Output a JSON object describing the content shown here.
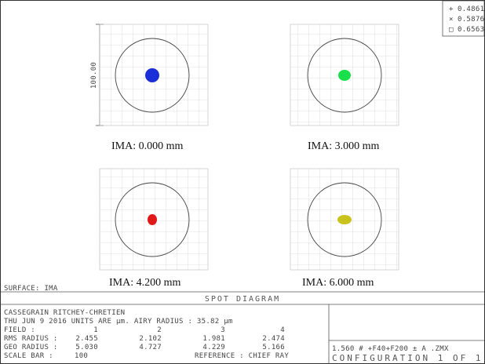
{
  "legend": [
    {
      "marker": "+",
      "value": "0.4861",
      "color": "#0000ff"
    },
    {
      "marker": "×",
      "value": "0.5876",
      "color": "#00cc33"
    },
    {
      "marker": "□",
      "value": "0.6563",
      "color": "#ff0000"
    }
  ],
  "scale_label": "100.00",
  "panels": [
    {
      "label": "IMA:  0.000 mm",
      "spot_color": "#1a2fd8",
      "spot_rx": 9,
      "spot_ry": 9
    },
    {
      "label": "IMA: 3.000 mm",
      "spot_color": "#19e04a",
      "spot_rx": 8,
      "spot_ry": 7
    },
    {
      "label": "IMA: 4.200   mm",
      "spot_color": "#e01818",
      "spot_rx": 6,
      "spot_ry": 7
    },
    {
      "label": "IMA: 6.000 mm",
      "spot_color": "#c9c21c",
      "spot_rx": 9,
      "spot_ry": 6
    }
  ],
  "surface": "SURFACE: IMA",
  "title": "SPOT DIAGRAM",
  "info": {
    "line1": "CASSEGRAIN RITCHEY-CHRETIEN",
    "line2": "THU JUN 9 2016  UNITS ARE µm.  AIRY RADIUS : 35.82 µm",
    "field_label": "FIELD       :",
    "field_values": [
      "1",
      "2",
      "3",
      "4"
    ],
    "rms_label": "RMS RADIUS  :",
    "rms_values": [
      "2.455",
      "2.102",
      "1.981",
      "2.474"
    ],
    "geo_label": "GEO RADIUS  :",
    "geo_values": [
      "5.030",
      "4.727",
      "4.229",
      "5.166"
    ],
    "scale_bar_label": "SCALE BAR   :",
    "scale_bar_value": "100",
    "reference": "REFERENCE  : CHIEF RAY"
  },
  "config": {
    "line1": "1.560  #  +F40+F200  ±  A  .ZMX",
    "line2": "CONFIGURATION  1  OF  1"
  }
}
